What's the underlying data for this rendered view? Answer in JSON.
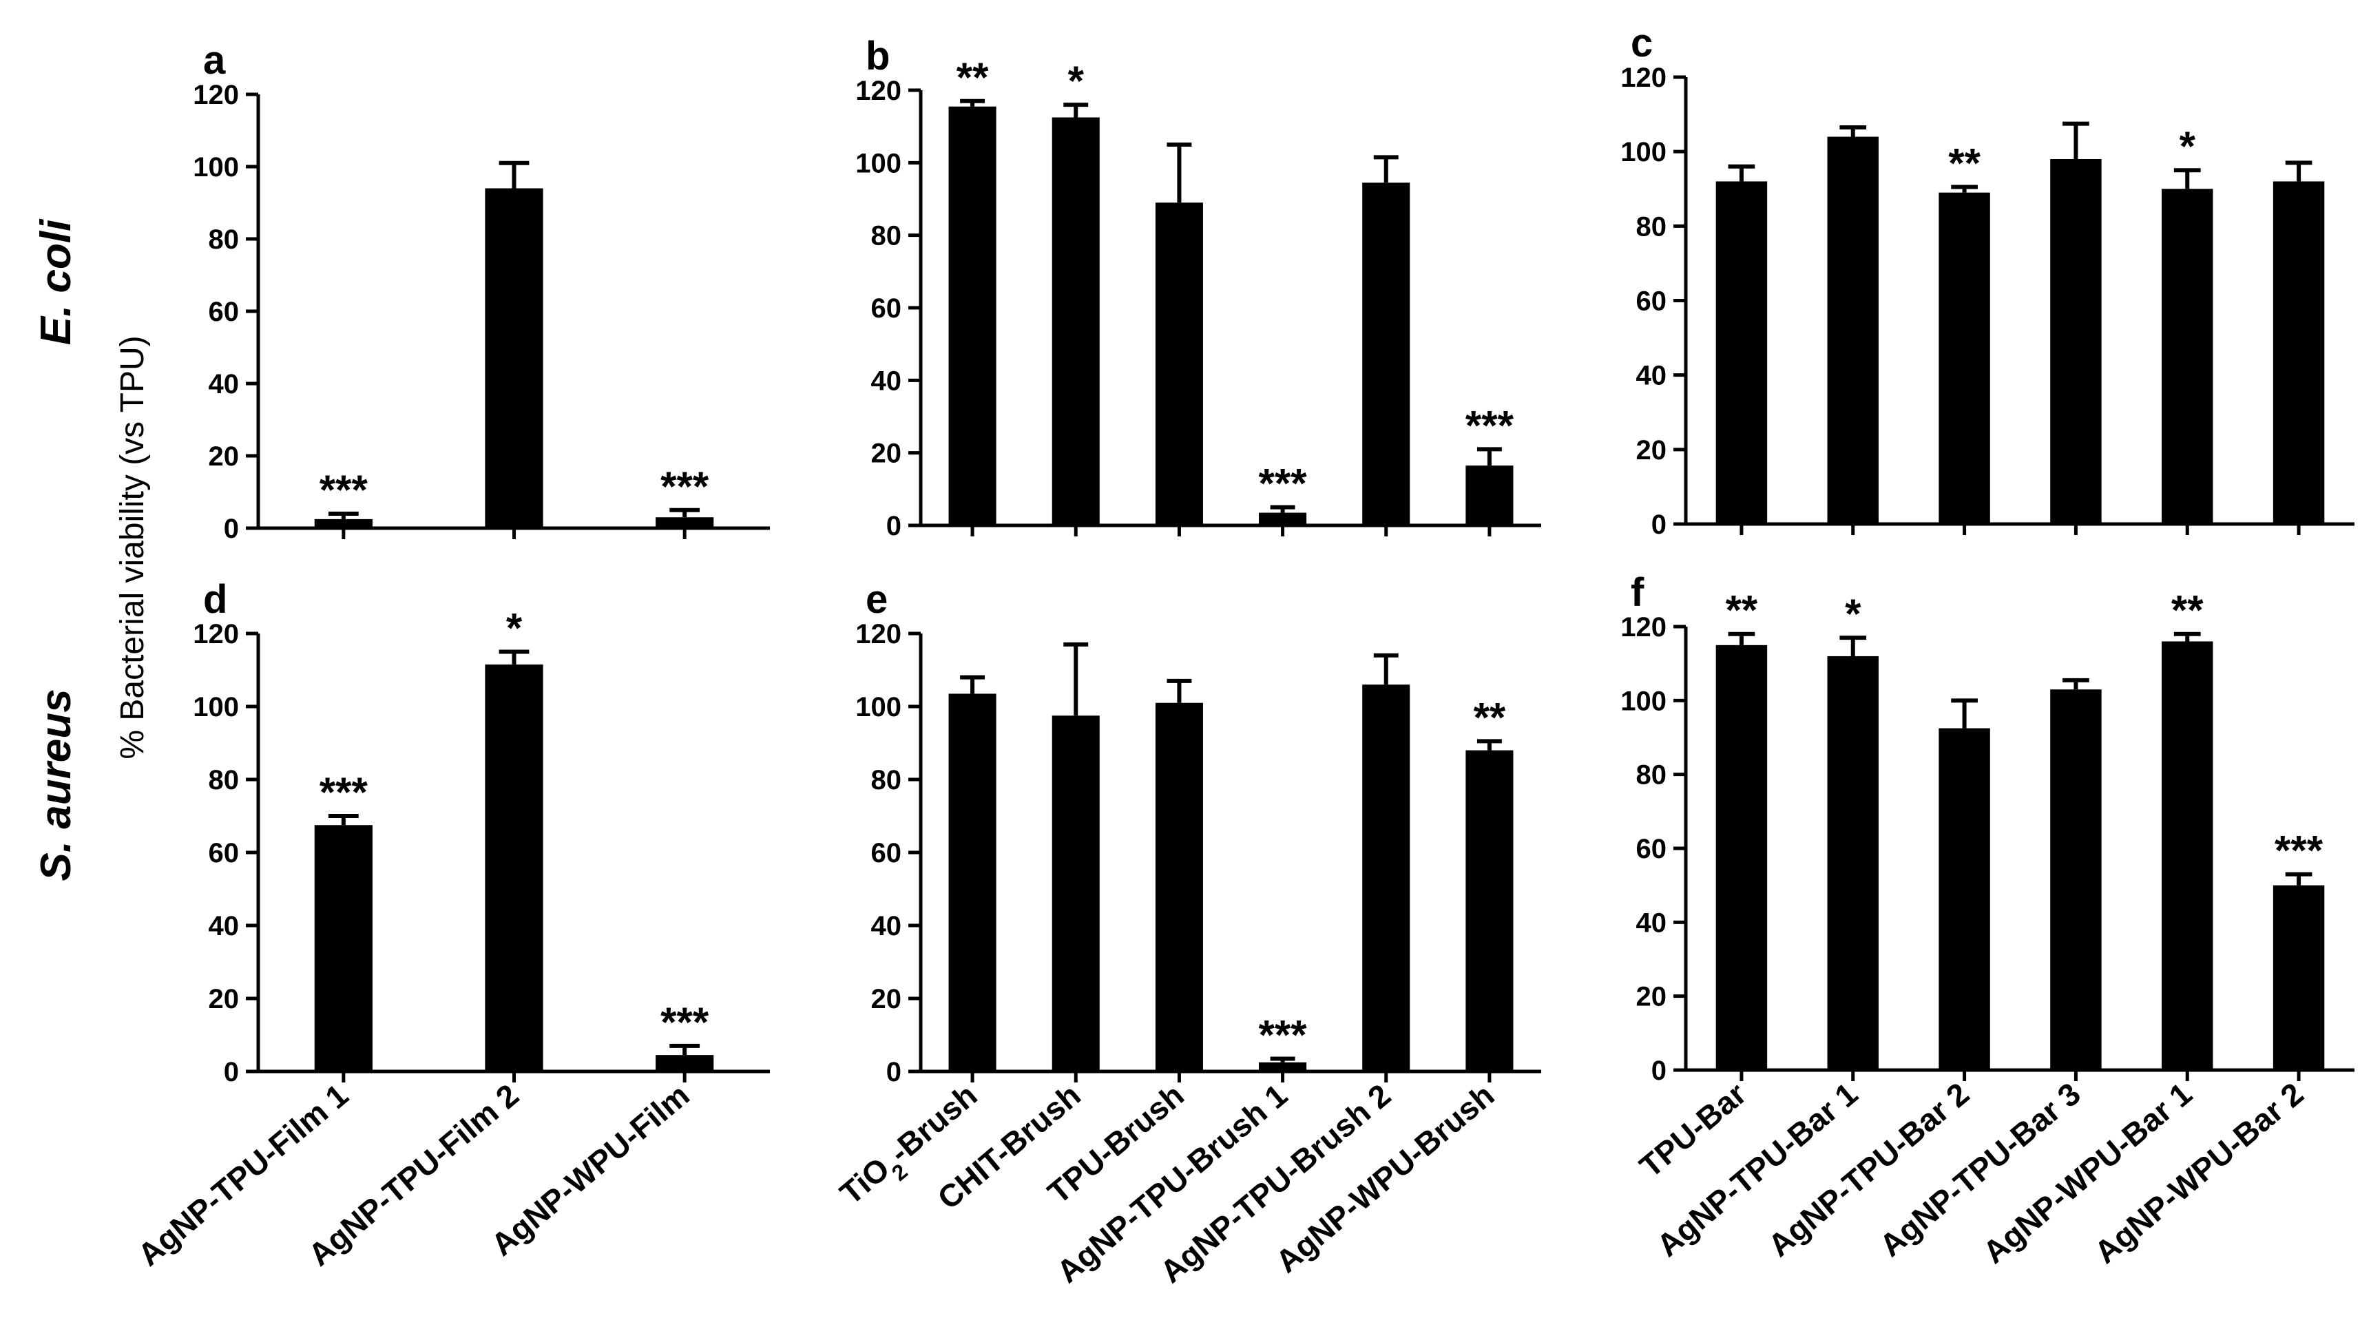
{
  "figure": {
    "y_axis_title": "% Bacterial viability (vs TPU)",
    "row_labels": {
      "top": "E. coli",
      "bottom": "S. aureus"
    },
    "colors": {
      "bar": "#000000",
      "axis": "#000000",
      "background": "#ffffff"
    }
  },
  "chart_data": [
    {
      "panel": "a",
      "type": "bar",
      "organism": "E. coli",
      "ylim": [
        0,
        120
      ],
      "yticks": [
        0,
        20,
        40,
        60,
        80,
        100,
        120
      ],
      "categories": [
        "AgNP-TPU-Film 1",
        "AgNP-TPU-Film 2",
        "AgNP-WPU-Film"
      ],
      "values": [
        2.5,
        94,
        3
      ],
      "errors": [
        1.5,
        7,
        2
      ],
      "significance": [
        "***",
        "",
        "***"
      ]
    },
    {
      "panel": "b",
      "type": "bar",
      "organism": "E. coli",
      "ylim": [
        0,
        120
      ],
      "yticks": [
        0,
        20,
        40,
        60,
        80,
        100,
        120
      ],
      "categories": [
        "TiO2-Brush",
        "CHIT-Brush",
        "TPU-Brush",
        "AgNP-TPU-Brush 1",
        "AgNP-TPU-Brush 2",
        "AgNP-WPU-Brush"
      ],
      "values": [
        115.5,
        112.5,
        89,
        3.5,
        94.5,
        16.5
      ],
      "errors": [
        1.5,
        3.5,
        16,
        1.5,
        7,
        4.5
      ],
      "significance": [
        "**",
        "*",
        "",
        "***",
        "",
        "***"
      ]
    },
    {
      "panel": "c",
      "type": "bar",
      "organism": "E. coli",
      "ylim": [
        0,
        120
      ],
      "yticks": [
        0,
        20,
        40,
        60,
        80,
        100,
        120
      ],
      "categories": [
        "TPU-Bar",
        "AgNP-TPU-Bar 1",
        "AgNP-TPU-Bar 2",
        "AgNP-TPU-Bar 3",
        "AgNP-WPU-Bar 1",
        "AgNP-WPU-Bar 2"
      ],
      "values": [
        92,
        104,
        89,
        98,
        90,
        92
      ],
      "errors": [
        4,
        2.5,
        1.5,
        9.5,
        5,
        5
      ],
      "significance": [
        "",
        "",
        "**",
        "",
        "*",
        ""
      ]
    },
    {
      "panel": "d",
      "type": "bar",
      "organism": "S. aureus",
      "ylim": [
        0,
        120
      ],
      "yticks": [
        0,
        20,
        40,
        60,
        80,
        100,
        120
      ],
      "categories": [
        "AgNP-TPU-Film 1",
        "AgNP-TPU-Film 2",
        "AgNP-WPU-Film"
      ],
      "values": [
        67.5,
        111.5,
        4.5
      ],
      "errors": [
        2.5,
        3.5,
        2.5
      ],
      "significance": [
        "***",
        "*",
        "***"
      ]
    },
    {
      "panel": "e",
      "type": "bar",
      "organism": "S. aureus",
      "ylim": [
        0,
        120
      ],
      "yticks": [
        0,
        20,
        40,
        60,
        80,
        100,
        120
      ],
      "categories": [
        "TiO2-Brush",
        "CHIT-Brush",
        "TPU-Brush",
        "AgNP-TPU-Brush 1",
        "AgNP-TPU-Brush 2",
        "AgNP-WPU-Brush"
      ],
      "values": [
        103.5,
        97.5,
        101,
        2.5,
        106,
        88
      ],
      "errors": [
        4.5,
        19.5,
        6,
        1,
        8,
        2.5
      ],
      "significance": [
        "",
        "",
        "",
        "***",
        "",
        "**"
      ]
    },
    {
      "panel": "f",
      "type": "bar",
      "organism": "S. aureus",
      "ylim": [
        0,
        120
      ],
      "yticks": [
        0,
        20,
        40,
        60,
        80,
        100,
        120
      ],
      "categories": [
        "TPU-Bar",
        "AgNP-TPU-Bar 1",
        "AgNP-TPU-Bar 2",
        "AgNP-TPU-Bar 3",
        "AgNP-WPU-Bar 1",
        "AgNP-WPU-Bar 2"
      ],
      "values": [
        115,
        112,
        92.5,
        103,
        116,
        50
      ],
      "errors": [
        3,
        5,
        7.5,
        2.5,
        2,
        3
      ],
      "significance": [
        "**",
        "*",
        "",
        "",
        "**",
        "***"
      ]
    }
  ]
}
